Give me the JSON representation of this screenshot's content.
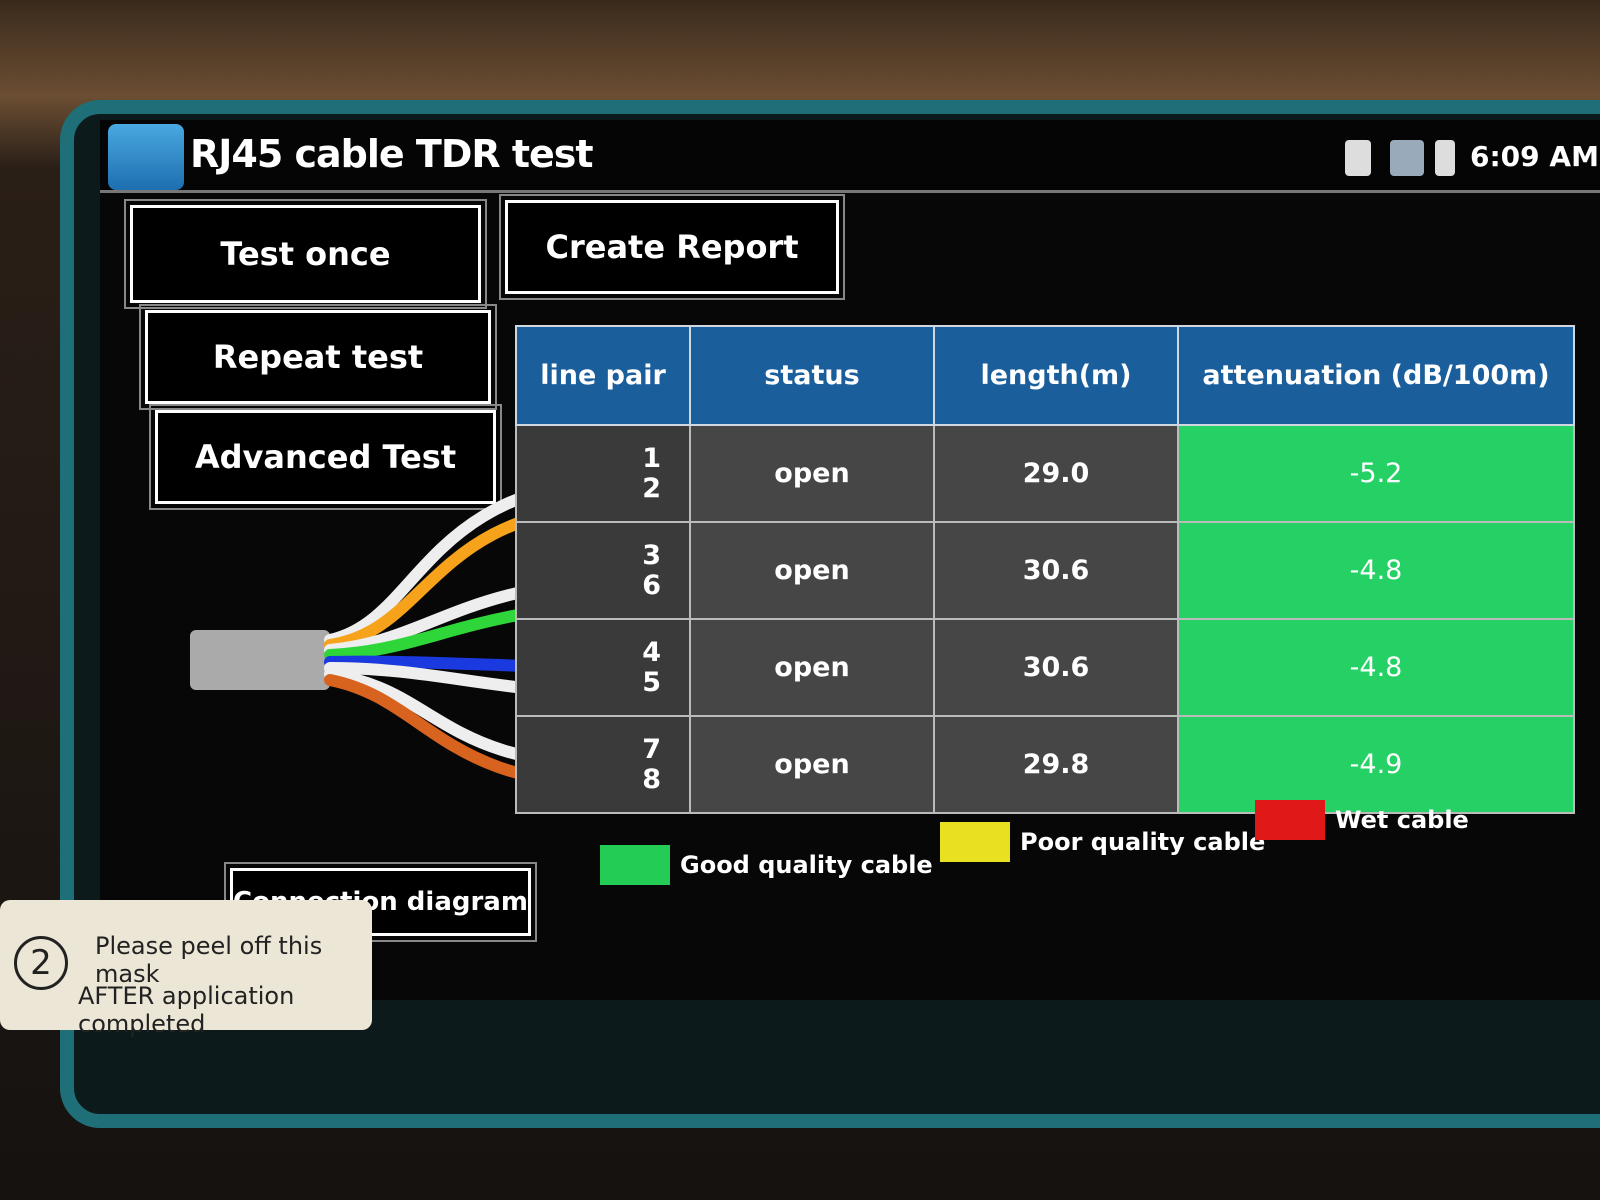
{
  "header": {
    "title": "RJ45 cable TDR test",
    "time": "6:09 AM"
  },
  "side_buttons": [
    "Test once",
    "Repeat test",
    "Advanced Test"
  ],
  "create_report": "Create Report",
  "connection_diagram": "Connection diagram",
  "table": {
    "columns": [
      "line pair",
      "status",
      "length(m)",
      "attenuation (dB/100m)"
    ],
    "rows": [
      {
        "pairs": [
          "1",
          "2"
        ],
        "status": "open",
        "length": "29.0",
        "attenuation": "-5.2"
      },
      {
        "pairs": [
          "3",
          "6"
        ],
        "status": "open",
        "length": "30.6",
        "attenuation": "-4.8"
      },
      {
        "pairs": [
          "4",
          "5"
        ],
        "status": "open",
        "length": "30.6",
        "attenuation": "-4.8"
      },
      {
        "pairs": [
          "7",
          "8"
        ],
        "status": "open",
        "length": "29.8",
        "attenuation": "-4.9"
      }
    ]
  },
  "legend": [
    {
      "label": "Good quality cable",
      "color": "#22cc55"
    },
    {
      "label": "Poor quality cable",
      "color": "#e8e020"
    },
    {
      "label": "Wet cable",
      "color": "#e01818"
    }
  ],
  "sticker": {
    "number": "2",
    "lines": [
      "Please peel off this mask",
      "AFTER application completed"
    ]
  }
}
